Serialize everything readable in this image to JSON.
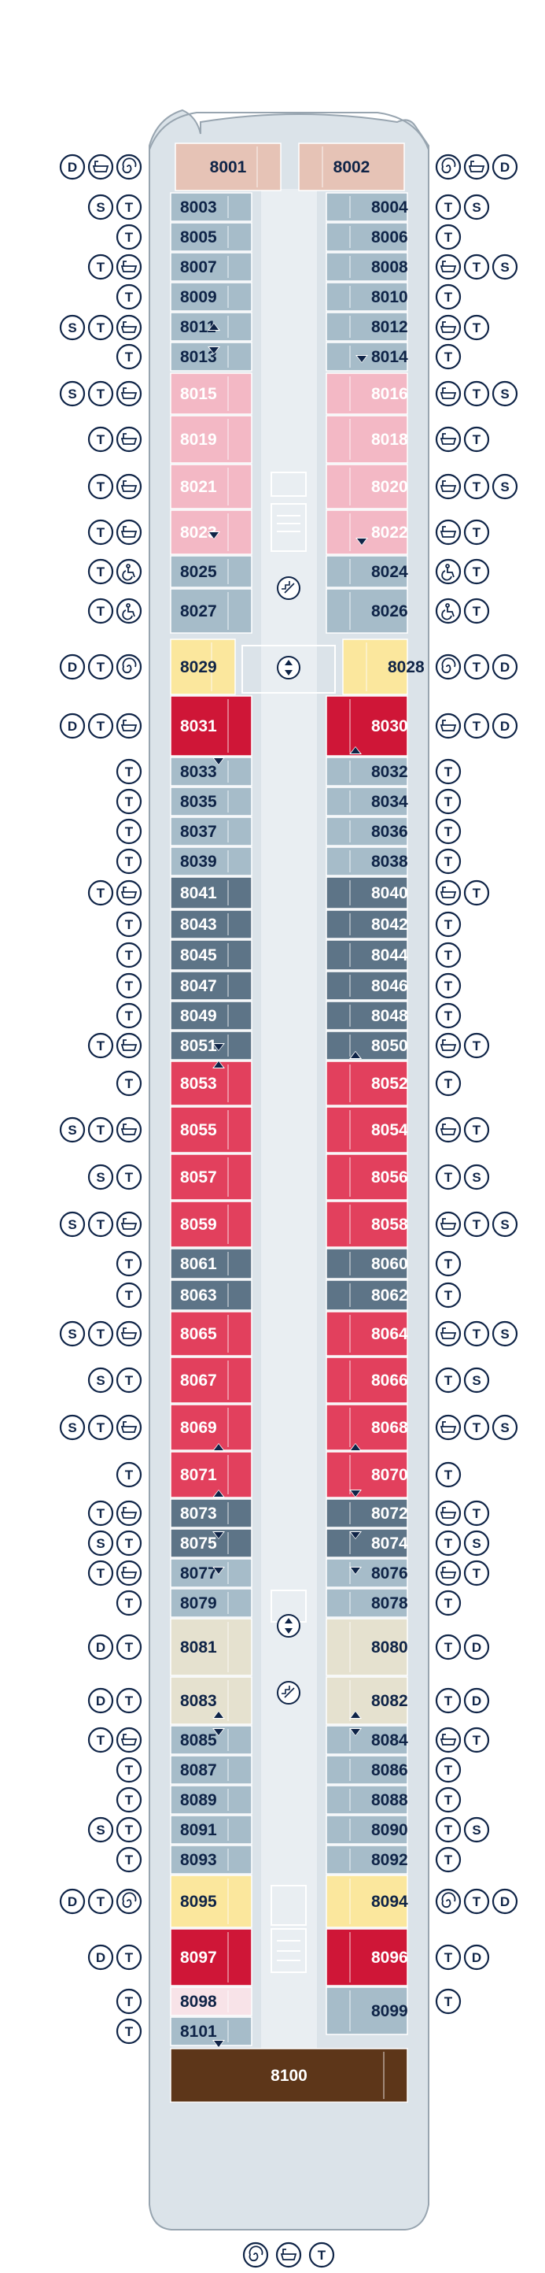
{
  "deck_plan": {
    "cabins": [
      {
        "number": "8001",
        "category": "owners"
      },
      {
        "number": "8002",
        "category": "owners"
      },
      {
        "number": "8003",
        "category": "steel"
      },
      {
        "number": "8004",
        "category": "steel"
      },
      {
        "number": "8005",
        "category": "steel"
      },
      {
        "number": "8006",
        "category": "steel"
      },
      {
        "number": "8007",
        "category": "steel"
      },
      {
        "number": "8008",
        "category": "steel"
      },
      {
        "number": "8009",
        "category": "steel"
      },
      {
        "number": "8010",
        "category": "steel"
      },
      {
        "number": "8011",
        "category": "steel"
      },
      {
        "number": "8012",
        "category": "steel"
      },
      {
        "number": "8013",
        "category": "steel"
      },
      {
        "number": "8014",
        "category": "steel"
      },
      {
        "number": "8015",
        "category": "pink"
      },
      {
        "number": "8016",
        "category": "pink"
      },
      {
        "number": "8019",
        "category": "pink"
      },
      {
        "number": "8018",
        "category": "pink"
      },
      {
        "number": "8021",
        "category": "pink"
      },
      {
        "number": "8020",
        "category": "pink"
      },
      {
        "number": "8023",
        "category": "pink"
      },
      {
        "number": "8022",
        "category": "pink"
      },
      {
        "number": "8025",
        "category": "steel"
      },
      {
        "number": "8024",
        "category": "steel"
      },
      {
        "number": "8027",
        "category": "steel"
      },
      {
        "number": "8026",
        "category": "steel"
      },
      {
        "number": "8029",
        "category": "yellow"
      },
      {
        "number": "8028",
        "category": "yellow"
      },
      {
        "number": "8031",
        "category": "red"
      },
      {
        "number": "8030",
        "category": "red"
      },
      {
        "number": "8033",
        "category": "steel"
      },
      {
        "number": "8032",
        "category": "steel"
      },
      {
        "number": "8035",
        "category": "steel"
      },
      {
        "number": "8034",
        "category": "steel"
      },
      {
        "number": "8037",
        "category": "steel"
      },
      {
        "number": "8036",
        "category": "steel"
      },
      {
        "number": "8039",
        "category": "steel"
      },
      {
        "number": "8038",
        "category": "steel"
      },
      {
        "number": "8041",
        "category": "slate"
      },
      {
        "number": "8040",
        "category": "slate"
      },
      {
        "number": "8043",
        "category": "slate"
      },
      {
        "number": "8042",
        "category": "slate"
      },
      {
        "number": "8045",
        "category": "slate"
      },
      {
        "number": "8044",
        "category": "slate"
      },
      {
        "number": "8047",
        "category": "slate"
      },
      {
        "number": "8046",
        "category": "slate"
      },
      {
        "number": "8049",
        "category": "slate"
      },
      {
        "number": "8048",
        "category": "slate"
      },
      {
        "number": "8051",
        "category": "slate"
      },
      {
        "number": "8050",
        "category": "slate"
      },
      {
        "number": "8053",
        "category": "crimson"
      },
      {
        "number": "8052",
        "category": "crimson"
      },
      {
        "number": "8055",
        "category": "crimson"
      },
      {
        "number": "8054",
        "category": "crimson"
      },
      {
        "number": "8057",
        "category": "crimson"
      },
      {
        "number": "8056",
        "category": "crimson"
      },
      {
        "number": "8059",
        "category": "crimson"
      },
      {
        "number": "8058",
        "category": "crimson"
      },
      {
        "number": "8061",
        "category": "slate"
      },
      {
        "number": "8060",
        "category": "slate"
      },
      {
        "number": "8063",
        "category": "slate"
      },
      {
        "number": "8062",
        "category": "slate"
      },
      {
        "number": "8065",
        "category": "crimson"
      },
      {
        "number": "8064",
        "category": "crimson"
      },
      {
        "number": "8067",
        "category": "crimson"
      },
      {
        "number": "8066",
        "category": "crimson"
      },
      {
        "number": "8069",
        "category": "crimson"
      },
      {
        "number": "8068",
        "category": "crimson"
      },
      {
        "number": "8071",
        "category": "crimson"
      },
      {
        "number": "8070",
        "category": "crimson"
      },
      {
        "number": "8073",
        "category": "slate"
      },
      {
        "number": "8072",
        "category": "slate"
      },
      {
        "number": "8075",
        "category": "slate"
      },
      {
        "number": "8074",
        "category": "slate"
      },
      {
        "number": "8077",
        "category": "steel"
      },
      {
        "number": "8076",
        "category": "steel"
      },
      {
        "number": "8079",
        "category": "steel"
      },
      {
        "number": "8078",
        "category": "steel"
      },
      {
        "number": "8081",
        "category": "beige"
      },
      {
        "number": "8080",
        "category": "beige"
      },
      {
        "number": "8083",
        "category": "beige"
      },
      {
        "number": "8082",
        "category": "beige"
      },
      {
        "number": "8085",
        "category": "steel"
      },
      {
        "number": "8084",
        "category": "steel"
      },
      {
        "number": "8087",
        "category": "steel"
      },
      {
        "number": "8086",
        "category": "steel"
      },
      {
        "number": "8089",
        "category": "steel"
      },
      {
        "number": "8088",
        "category": "steel"
      },
      {
        "number": "8091",
        "category": "steel"
      },
      {
        "number": "8090",
        "category": "steel"
      },
      {
        "number": "8093",
        "category": "steel"
      },
      {
        "number": "8092",
        "category": "steel"
      },
      {
        "number": "8095",
        "category": "yellow"
      },
      {
        "number": "8094",
        "category": "yellow"
      },
      {
        "number": "8097",
        "category": "red"
      },
      {
        "number": "8096",
        "category": "red"
      },
      {
        "number": "8098",
        "category": "lightpink"
      },
      {
        "number": "8099",
        "category": "steel"
      },
      {
        "number": "8101",
        "category": "steel"
      },
      {
        "number": "8100",
        "category": "brown"
      }
    ],
    "amenity_icons": {
      "D": {
        "glyph": "D",
        "name": "d-icon"
      },
      "T": {
        "glyph": "T",
        "name": "t-icon"
      },
      "S": {
        "glyph": "S",
        "name": "s-icon"
      },
      "bath": {
        "glyph": "",
        "name": "bathtub-icon"
      },
      "spiral": {
        "glyph": "",
        "name": "whirlpool-icon"
      },
      "wheel": {
        "glyph": "",
        "name": "wheelchair-icon"
      }
    },
    "colors": {
      "owners": "#e6c3b6",
      "steel": "#a6bcc9",
      "pink": "#f3b8c5",
      "yellow": "#fbe79d",
      "red": "#cf1637",
      "crimson": "#e2405d",
      "slate": "#5d7487",
      "beige": "#e5e1cf",
      "lightpink": "#f8e3e8",
      "brown": "#5d3619",
      "hull": "#dbe3e9",
      "hull_outline": "#98a5b0",
      "corridor": "#e9eef2",
      "icon": "#0f2447"
    }
  }
}
